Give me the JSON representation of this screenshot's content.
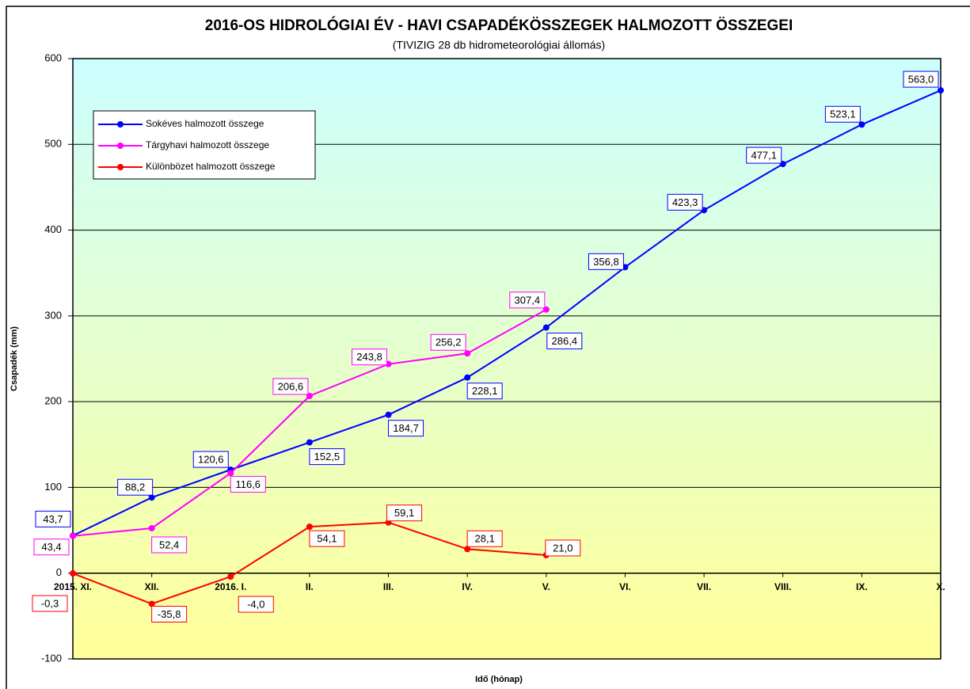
{
  "chart_data": {
    "type": "line",
    "title": "2016-OS HIDROLÓGIAI ÉV - HAVI CSAPADÉKÖSSZEGEK HALMOZOTT ÖSSZEGEI",
    "subtitle": "(TIVIZIG  28 db hidrometeorológiai állomás)",
    "x_label": "Idő (hónap)",
    "y_label": "Csapadék (mm)",
    "categories": [
      "2015. XI.",
      "XII.",
      "2016. I.",
      "II.",
      "III.",
      "IV.",
      "V.",
      "VI.",
      "VII.",
      "VIII.",
      "IX.",
      "X."
    ],
    "series": [
      {
        "name": "Sokéves halmozott összege",
        "color": "#0000ff",
        "values": [
          43.7,
          88.2,
          120.6,
          152.5,
          184.7,
          228.1,
          286.4,
          356.8,
          423.3,
          477.1,
          523.1,
          563.0
        ],
        "value_labels": [
          "43,7",
          "88,2",
          "120,6",
          "152,5",
          "184,7",
          "228,1",
          "286,4",
          "356,8",
          "423,3",
          "477,1",
          "523,1",
          "563,0"
        ]
      },
      {
        "name": "Tárgyhavi halmozott összege",
        "color": "#ff00ff",
        "values": [
          43.4,
          52.4,
          116.6,
          206.6,
          243.8,
          256.2,
          307.4,
          null,
          null,
          null,
          null,
          null
        ],
        "value_labels": [
          "43,4",
          "52,4",
          "116,6",
          "206,6",
          "243,8",
          "256,2",
          "307,4",
          null,
          null,
          null,
          null,
          null
        ]
      },
      {
        "name": "Különbözet halmozott összege",
        "color": "#ff0000",
        "values": [
          -0.3,
          -35.8,
          -4.0,
          54.1,
          59.1,
          28.1,
          21.0,
          null,
          null,
          null,
          null,
          null
        ],
        "value_labels": [
          "-0,3",
          "-35,8",
          "-4,0",
          "54,1",
          "59,1",
          "28,1",
          "21,0",
          null,
          null,
          null,
          null,
          null
        ]
      }
    ],
    "ylim": [
      -100,
      600
    ],
    "yticks": [
      -100,
      0,
      100,
      200,
      300,
      400,
      500,
      600
    ],
    "grid": true
  }
}
